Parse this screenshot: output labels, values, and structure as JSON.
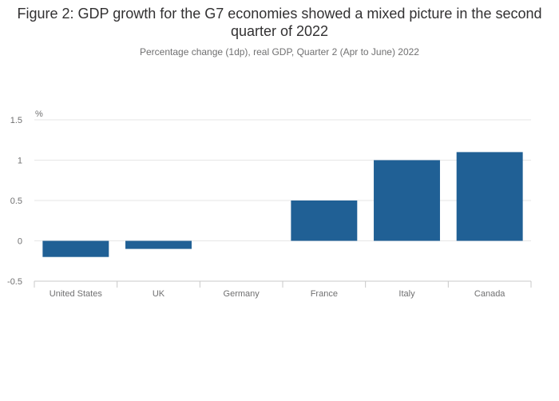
{
  "chart_data": {
    "type": "bar",
    "title": "Figure 2: GDP growth for the G7 economies showed a mixed picture in the second quarter of 2022",
    "subtitle": "Percentage change (1dp), real GDP, Quarter 2 (Apr to June) 2022",
    "ylabel": "%",
    "xlabel": "",
    "categories": [
      "United States",
      "UK",
      "Germany",
      "France",
      "Italy",
      "Canada"
    ],
    "values": [
      -0.2,
      -0.1,
      0.0,
      0.5,
      1.0,
      1.1
    ],
    "ylim": [
      -0.5,
      1.5
    ],
    "yticks": [
      1.5,
      1,
      0.5,
      0,
      -0.5
    ],
    "ytick_labels": [
      "1.5",
      "1",
      "0.5",
      "0",
      "-0.5"
    ],
    "grid": true,
    "bar_color": "#206095",
    "grid_color": "#e6e6e6",
    "axis_color": "#c8c8c8"
  }
}
